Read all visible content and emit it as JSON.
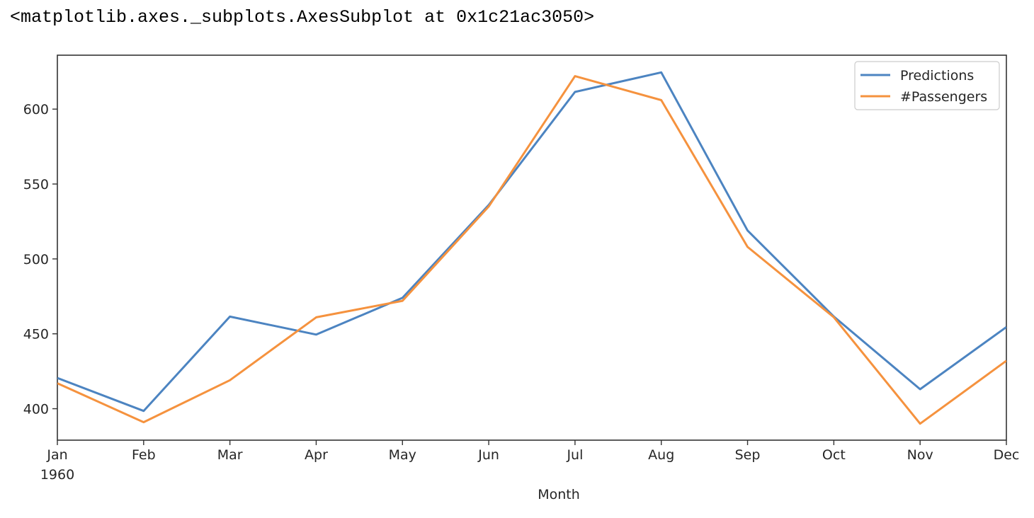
{
  "output_repr": "<matplotlib.axes._subplots.AxesSubplot at 0x1c21ac3050>",
  "chart_data": {
    "type": "line",
    "categories": [
      "Jan",
      "Feb",
      "Mar",
      "Apr",
      "May",
      "Jun",
      "Jul",
      "Aug",
      "Sep",
      "Oct",
      "Nov",
      "Dec"
    ],
    "year_label": "1960",
    "xlabel": "Month",
    "ylabel": "",
    "ylim": [
      379,
      636
    ],
    "yticks": [
      400,
      450,
      500,
      550,
      600
    ],
    "grid": false,
    "legend_position": "top-right",
    "series": [
      {
        "name": "Predictions",
        "color": "#4c84c1",
        "values": [
          420.5,
          398.5,
          461.5,
          449.5,
          474,
          536,
          611.5,
          624.5,
          519,
          461.5,
          413,
          454.5
        ]
      },
      {
        "name": "#Passengers",
        "color": "#f5923e",
        "values": [
          417,
          391,
          419,
          461,
          472,
          535,
          622,
          606,
          508,
          461,
          390,
          432
        ]
      }
    ]
  }
}
